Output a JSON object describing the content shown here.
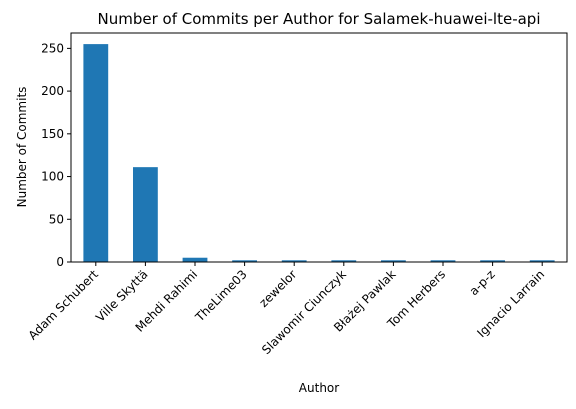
{
  "chart_data": {
    "type": "bar",
    "title": "Number of Commits per Author for Salamek-huawei-lte-api",
    "xlabel": "Author",
    "ylabel": "Number of Commits",
    "categories": [
      "Adam Schubert",
      "Ville Skyttä",
      "Mehdi Rahimi",
      "TheLime03",
      "zewelor",
      "Slawomir Ciunczyk",
      "Błażej Pawlak",
      "Tom Herbers",
      "a-p-z",
      "Ignacio Larrain"
    ],
    "values": [
      255,
      111,
      5,
      2,
      2,
      2,
      2,
      2,
      2,
      2
    ],
    "ylim": [
      0,
      268
    ],
    "yticks": [
      0,
      50,
      100,
      150,
      200,
      250
    ],
    "grid": false,
    "bar_color": "#1f77b4"
  }
}
